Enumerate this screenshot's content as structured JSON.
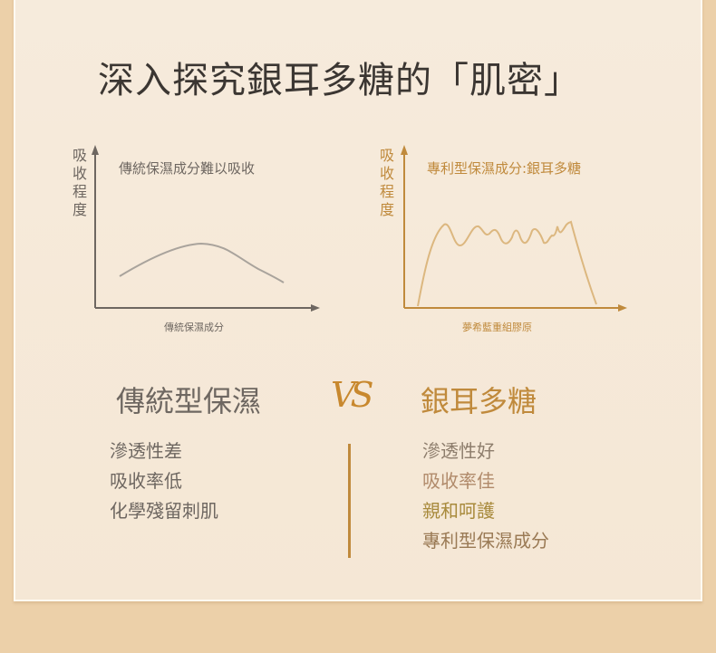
{
  "title": "深入探究銀耳多糖的「肌密」",
  "left_chart": {
    "ylabel": "吸收程度",
    "title": "傳統保濕成分難以吸收",
    "xlabel": "傳統保濕成分",
    "color": "#6e6761",
    "curve": "single low arch"
  },
  "right_chart": {
    "ylabel": "吸收程度",
    "title": "專利型保濕成分:銀耳多糖",
    "xlabel": "夢希藍重組膠原",
    "color": "#c08a3c",
    "curve": "high wavy plateau"
  },
  "comparison": {
    "left_heading": "傳統型保濕",
    "vs": "VS",
    "right_heading": "銀耳多糖",
    "left_items": [
      "滲透性差",
      "吸收率低",
      "化學殘留刺肌"
    ],
    "right_items": [
      "滲透性好",
      "吸收率佳",
      "親和呵護",
      "專利型保濕成分"
    ],
    "right_item_colors": [
      "#8d7d6c",
      "#b08a6a",
      "#a88a3c",
      "#9a7a55"
    ]
  }
}
